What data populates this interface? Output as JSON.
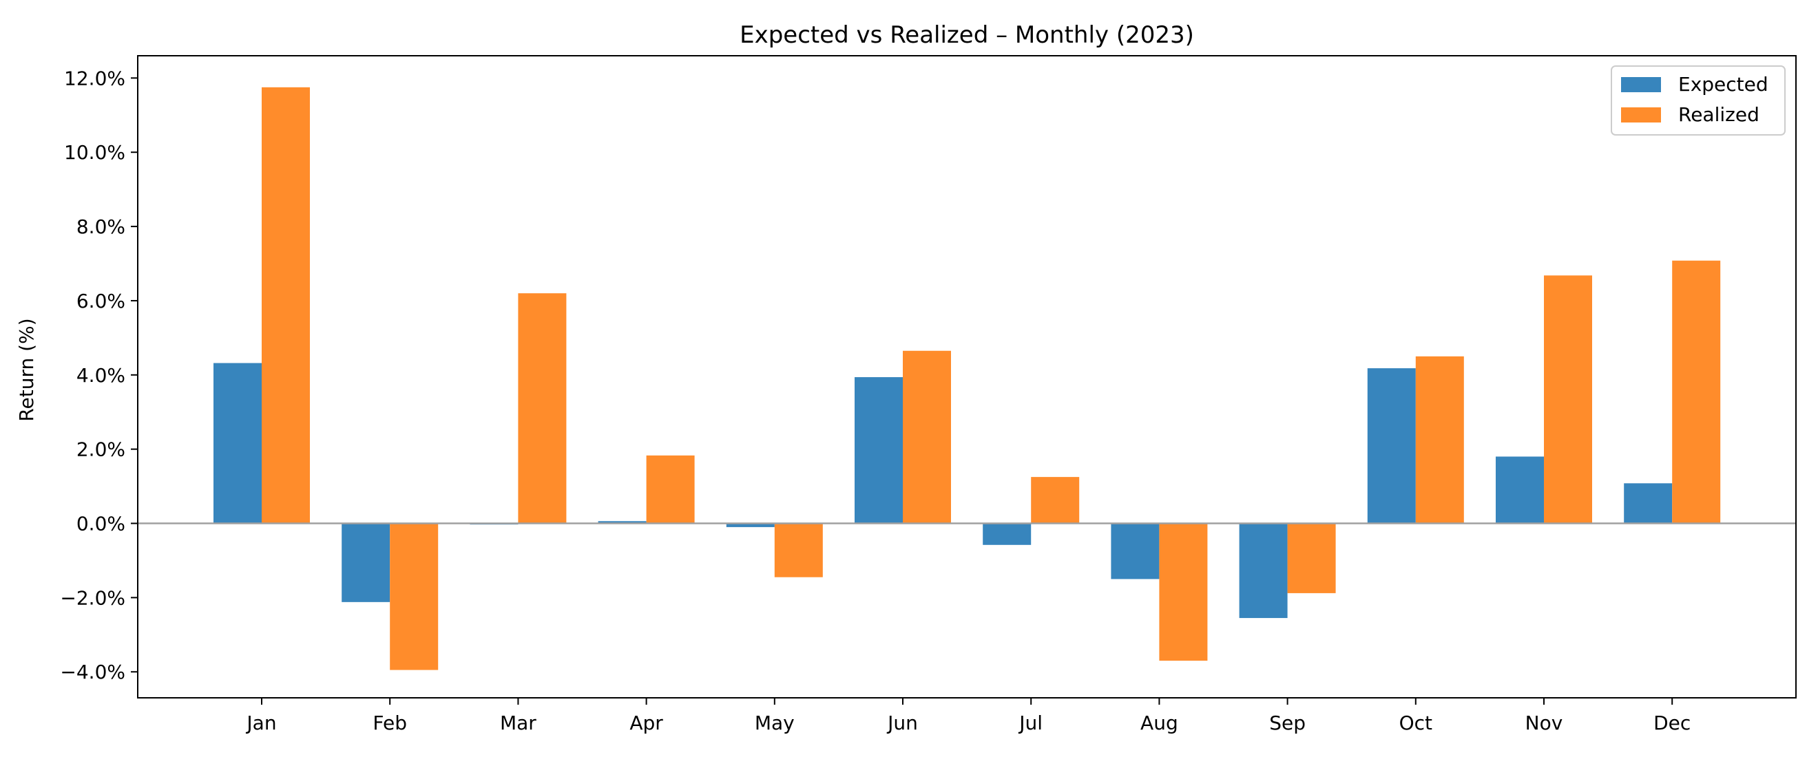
{
  "chart_data": {
    "type": "bar",
    "title": "Expected vs Realized – Monthly (2023)",
    "xlabel": "",
    "ylabel": "Return (%)",
    "categories": [
      "Jan",
      "Feb",
      "Mar",
      "Apr",
      "May",
      "Jun",
      "Jul",
      "Aug",
      "Sep",
      "Oct",
      "Nov",
      "Dec"
    ],
    "series": [
      {
        "name": "Expected",
        "color": "#3785BD",
        "values": [
          4.32,
          -2.12,
          -0.03,
          0.06,
          -0.1,
          3.94,
          -0.58,
          -1.5,
          -2.55,
          4.18,
          1.8,
          1.08
        ]
      },
      {
        "name": "Realized",
        "color": "#FF8C2B",
        "values": [
          11.75,
          -3.95,
          6.2,
          1.83,
          -1.45,
          4.65,
          1.25,
          -3.7,
          -1.88,
          4.5,
          6.68,
          7.08
        ]
      }
    ],
    "ylim": [
      -4.7,
      12.6
    ],
    "yticks": [
      -4,
      -2,
      0,
      2,
      4,
      6,
      8,
      10,
      12
    ],
    "ytick_labels": [
      "−4.0%",
      "−2.0%",
      "0.0%",
      "2.0%",
      "4.0%",
      "6.0%",
      "8.0%",
      "10.0%",
      "12.0%"
    ],
    "grid": false,
    "legend_position": "top-right",
    "zero_line_color": "#A0A0A0"
  }
}
